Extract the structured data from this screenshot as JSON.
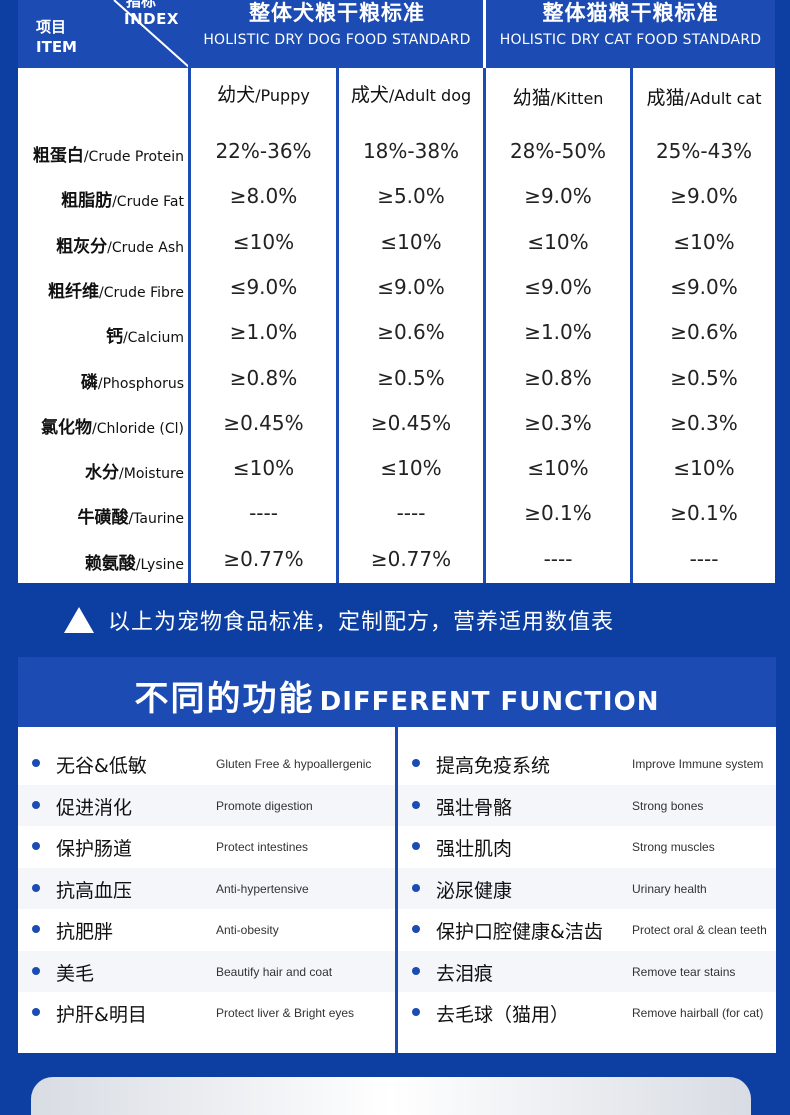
{
  "table": {
    "corner": {
      "index_cn": "指标",
      "index_en": "INDEX",
      "item_cn": "项目",
      "item_en": "ITEM"
    },
    "dog_standard": {
      "cn": "整体犬粮干粮标准",
      "en": "HOLISTIC DRY DOG FOOD STANDARD"
    },
    "cat_standard": {
      "cn": "整体猫粮干粮标准",
      "en": "HOLISTIC DRY CAT FOOD STANDARD"
    },
    "columns": [
      {
        "cn": "幼犬",
        "en": "/Puppy"
      },
      {
        "cn": "成犬",
        "en": "/Adult dog"
      },
      {
        "cn": "幼猫",
        "en": "/Kitten"
      },
      {
        "cn": "成猫",
        "en": "/Adult cat"
      }
    ],
    "rows": [
      {
        "cn": "粗蛋白",
        "en": "/Crude Protein",
        "values": [
          "22%-36%",
          "18%-38%",
          "28%-50%",
          "25%-43%"
        ]
      },
      {
        "cn": "粗脂肪",
        "en": "/Crude Fat",
        "values": [
          "≥8.0%",
          "≥5.0%",
          "≥9.0%",
          "≥9.0%"
        ]
      },
      {
        "cn": "粗灰分",
        "en": "/Crude Ash",
        "values": [
          "≤10%",
          "≤10%",
          "≤10%",
          "≤10%"
        ]
      },
      {
        "cn": "粗纤维",
        "en": "/Crude Fibre",
        "values": [
          "≤9.0%",
          "≤9.0%",
          "≤9.0%",
          "≤9.0%"
        ]
      },
      {
        "cn": "钙",
        "en": "/Calcium",
        "values": [
          "≥1.0%",
          "≥0.6%",
          "≥1.0%",
          "≥0.6%"
        ]
      },
      {
        "cn": "磷",
        "en": "/Phosphorus",
        "values": [
          "≥0.8%",
          "≥0.5%",
          "≥0.8%",
          "≥0.5%"
        ]
      },
      {
        "cn": "氯化物",
        "en": "/Chloride (Cl)",
        "values": [
          "≥0.45%",
          "≥0.45%",
          "≥0.3%",
          "≥0.3%"
        ]
      },
      {
        "cn": "水分",
        "en": "/Moisture",
        "values": [
          "≤10%",
          "≤10%",
          "≤10%",
          "≤10%"
        ]
      },
      {
        "cn": "牛磺酸",
        "en": "/Taurine",
        "values": [
          "----",
          "----",
          "≥0.1%",
          "≥0.1%"
        ]
      },
      {
        "cn": "赖氨酸",
        "en": "/Lysine",
        "values": [
          "≥0.77%",
          "≥0.77%",
          "----",
          "----"
        ]
      }
    ]
  },
  "note": "以上为宠物食品标准，定制配方，营养适用数值表",
  "functions": {
    "title_cn": "不同的功能",
    "title_en": "DIFFERENT FUNCTION",
    "left": [
      {
        "cn": "无谷&低敏",
        "en": "Gluten Free & hypoallergenic"
      },
      {
        "cn": "促进消化",
        "en": "Promote digestion"
      },
      {
        "cn": "保护肠道",
        "en": "Protect intestines"
      },
      {
        "cn": "抗高血压",
        "en": "Anti-hypertensive"
      },
      {
        "cn": "抗肥胖",
        "en": "Anti-obesity"
      },
      {
        "cn": "美毛",
        "en": "Beautify hair and coat"
      },
      {
        "cn": "护肝&明目",
        "en": "Protect liver & Bright eyes"
      }
    ],
    "right": [
      {
        "cn": "提高免疫系统",
        "en": "Improve Immune system"
      },
      {
        "cn": "强壮骨骼",
        "en": "Strong bones"
      },
      {
        "cn": "强壮肌肉",
        "en": "Strong muscles"
      },
      {
        "cn": "泌尿健康",
        "en": "Urinary health"
      },
      {
        "cn": "保护口腔健康&洁齿",
        "en": "Protect oral & clean teeth"
      },
      {
        "cn": "去泪痕",
        "en": "Remove tear stains"
      },
      {
        "cn": "去毛球（猫用）",
        "en": "Remove hairball (for cat)"
      }
    ]
  },
  "colors": {
    "background": "#0d3fa3",
    "header": "#1b4bb3",
    "panel": "#ffffff"
  }
}
